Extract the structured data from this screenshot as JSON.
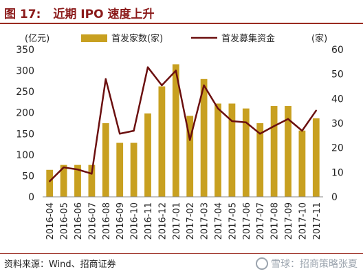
{
  "header": {
    "figure_no": "图 17:",
    "title": "近期 IPO 速度上升"
  },
  "footer": {
    "source": "资料来源：Wind、招商证券",
    "watermark": "雪球：招商策略张夏"
  },
  "chart_data": {
    "type": "bar",
    "categories": [
      "2016-04",
      "2016-05",
      "2016-06",
      "2016-07",
      "2016-08",
      "2016-09",
      "2016-10",
      "2016-11",
      "2016-12",
      "2017-01",
      "2017-02",
      "2017-03",
      "2017-04",
      "2017-05",
      "2017-06",
      "2017-07",
      "2017-08",
      "2017-09",
      "2017-10",
      "2017-11"
    ],
    "series": [
      {
        "name": "首发家数(家)",
        "type": "bar",
        "axis": "right",
        "color": "#c8a020",
        "values": [
          11,
          13,
          13,
          13,
          30,
          22,
          22,
          34,
          45,
          54,
          33,
          48,
          38,
          38,
          36,
          30,
          37,
          37,
          27,
          32
        ]
      },
      {
        "name": "首发募集资金",
        "type": "line",
        "axis": "left",
        "color": "#6b0f0f",
        "values": [
          37,
          70,
          65,
          55,
          280,
          150,
          157,
          308,
          265,
          300,
          135,
          265,
          210,
          180,
          177,
          150,
          168,
          185,
          157,
          205
        ]
      }
    ],
    "y_left": {
      "label": "(亿元)",
      "ylim": [
        0,
        350
      ],
      "ticks": [
        0,
        50,
        100,
        150,
        200,
        250,
        300,
        350
      ]
    },
    "y_right": {
      "label": "(家)",
      "ylim": [
        0,
        60
      ],
      "ticks": [
        0,
        10,
        20,
        30,
        40,
        50,
        60
      ]
    },
    "legend_position": "top",
    "grid": false
  }
}
